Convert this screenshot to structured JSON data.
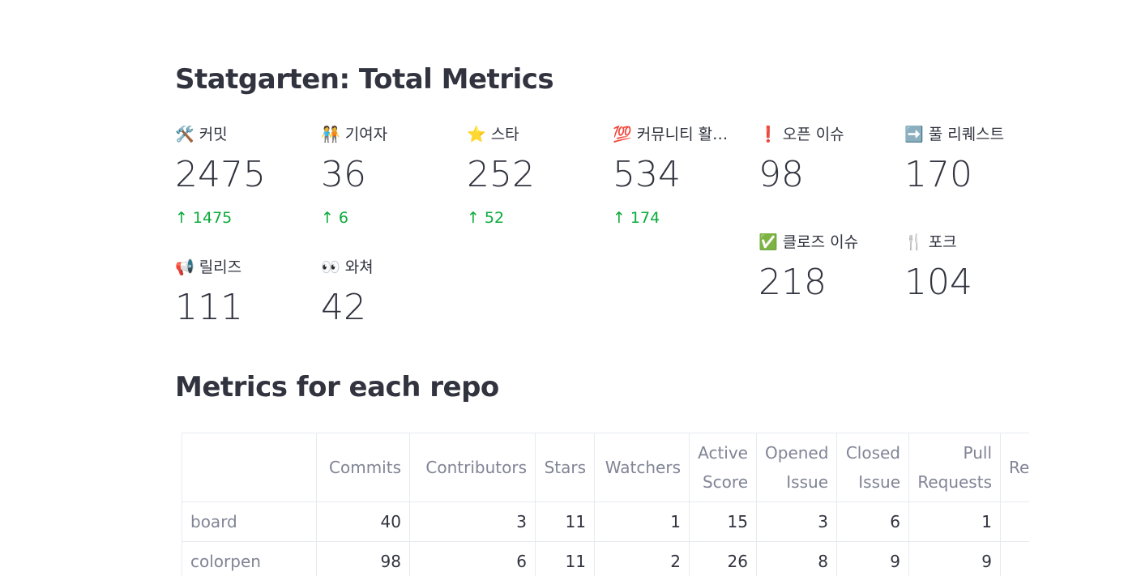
{
  "header": {
    "title": "Statgarten: Total Metrics"
  },
  "metrics": [
    {
      "label": "🛠️ 커밋",
      "value": 2475,
      "delta": 1475
    },
    {
      "label": "🧑‍🤝‍🧑 기여자",
      "value": 36,
      "delta": 6
    },
    {
      "label": "⭐ 스타",
      "value": 252,
      "delta": 52
    },
    {
      "label": "💯 커뮤니티 활…",
      "value": 534,
      "delta": 174
    },
    {
      "label": "📢 릴리즈",
      "value": 111
    },
    {
      "label": "👀 와쳐",
      "value": 42
    }
  ],
  "right_metrics": [
    {
      "label": "❗ 오픈 이슈",
      "value": 98
    },
    {
      "label": "➡️ 풀 리퀘스트",
      "value": 170
    },
    {
      "label": "✅ 클로즈 이슈",
      "value": 218
    },
    {
      "label": "🍴 포크",
      "value": 104
    }
  ],
  "section_title": "Metrics for each repo",
  "table": {
    "columns": [
      "Commits",
      "Contributors",
      "Stars",
      "Watchers",
      "Active Score",
      "Opened Issue",
      "Closed Issue",
      "Pull Requests",
      "Re"
    ],
    "rows": [
      {
        "index": "board",
        "cells": [
          40,
          3,
          11,
          1,
          15,
          3,
          6,
          1
        ]
      },
      {
        "index": "colorpen",
        "cells": [
          98,
          6,
          11,
          2,
          26,
          8,
          9,
          9
        ]
      }
    ]
  }
}
